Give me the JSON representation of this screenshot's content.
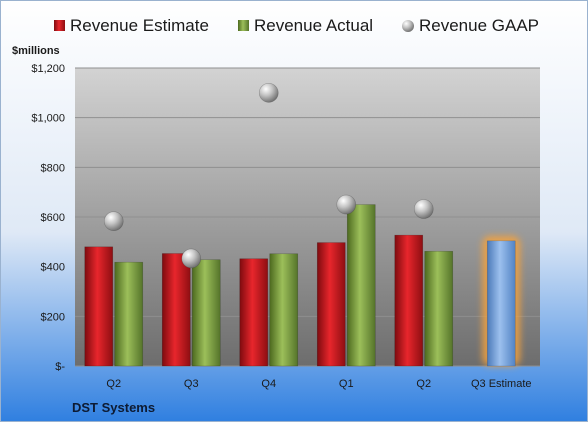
{
  "chart_data": {
    "type": "bar",
    "ylabel": "$millions",
    "caption": "DST Systems",
    "ylim": [
      0,
      1200
    ],
    "yticks": [
      0,
      200,
      400,
      600,
      800,
      1000,
      1200
    ],
    "ytick_labels": [
      "$-",
      "$200",
      "$400",
      "$600",
      "$800",
      "$1,000",
      "$1,200"
    ],
    "categories": [
      "Q2",
      "Q3",
      "Q4",
      "Q1",
      "Q2",
      "Q3 Estimate"
    ],
    "legend_position": "top",
    "grid": true,
    "series": [
      {
        "name": "Revenue Estimate",
        "kind": "bar",
        "color": "#c8161d",
        "values": [
          480,
          453,
          432,
          497,
          527,
          null
        ]
      },
      {
        "name": "Revenue Actual",
        "kind": "bar",
        "color": "#7a9a3a",
        "values": [
          418,
          428,
          452,
          650,
          462,
          null
        ]
      },
      {
        "name": "Revenue GAAP",
        "kind": "scatter",
        "color": "#b0b0b0",
        "values": [
          583,
          433,
          1100,
          650,
          632,
          null
        ]
      }
    ],
    "highlight": {
      "category": "Q3 Estimate",
      "value": 504,
      "color": "#6d9bd6",
      "glow_color": "#f4a23c"
    }
  }
}
